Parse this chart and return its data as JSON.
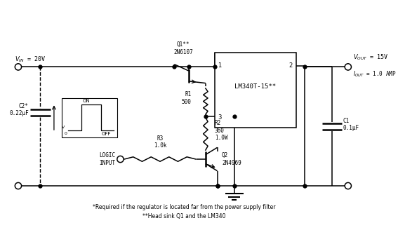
{
  "bg_color": "#ffffff",
  "line_color": "#000000",
  "fig_width": 5.67,
  "fig_height": 3.28,
  "footnote1": "*Required if the regulator is located far from the power supply filter",
  "footnote2": "**Head sink Q1 and the LM340",
  "q1_label": "Q1**\n2N6107",
  "q2_label": "Q2\n2N4969",
  "r1_label": "R1\n500",
  "r2_label": "R2\n360\n1.0W",
  "r3_label": "R3\n1.0k",
  "c1_label": "C1\n0.1μF",
  "c2_label": "C2*\n0.22μF",
  "lm340_label": "LM340T-15**",
  "logic_label": "LOGIC\nINPUT"
}
